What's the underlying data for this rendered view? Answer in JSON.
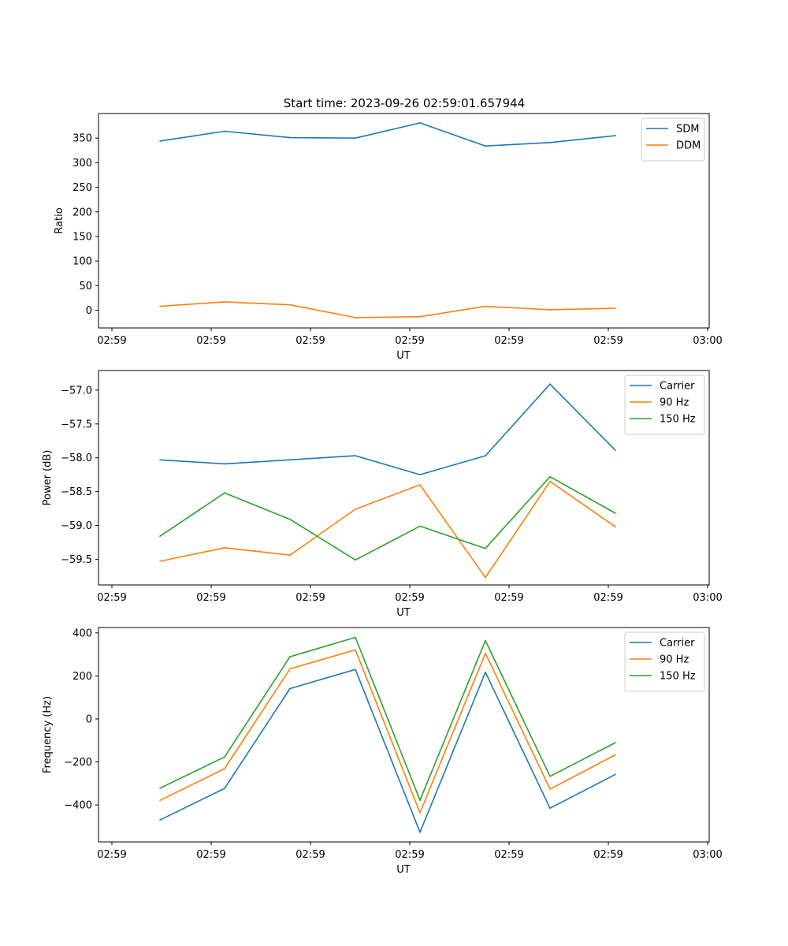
{
  "figure_title": "Start time: 2023-09-26 02:59:01.657944",
  "chart_data": [
    {
      "type": "line",
      "title": "Start time: 2023-09-26 02:59:01.657944",
      "xlabel": "UT",
      "ylabel": "Ratio",
      "x_tick_labels": [
        "02:59",
        "02:59",
        "02:59",
        "02:59",
        "02:59",
        "02:59",
        "02:59"
      ],
      "x_end_tick_label": "03:00",
      "y_ticks": [
        0,
        50,
        100,
        150,
        200,
        250,
        300,
        350
      ],
      "ylim": [
        -36,
        400
      ],
      "legend_position": "top-right",
      "series": [
        {
          "name": "SDM",
          "color": "#1f77b4",
          "values": [
            344,
            364,
            351,
            350,
            381,
            334,
            341,
            355
          ]
        },
        {
          "name": "DDM",
          "color": "#ff7f0e",
          "values": [
            8,
            17,
            11,
            -15,
            -13,
            8,
            1,
            4
          ]
        }
      ]
    },
    {
      "type": "line",
      "title": "",
      "xlabel": "UT",
      "ylabel": "Power (dB)",
      "x_tick_labels": [
        "02:59",
        "02:59",
        "02:59",
        "02:59",
        "02:59",
        "02:59",
        "02:59"
      ],
      "x_end_tick_label": "03:00",
      "y_ticks": [
        -57.0,
        -57.5,
        -58.0,
        -58.5,
        -59.0,
        -59.5
      ],
      "y_tick_labels": [
        "−57.0",
        "−57.5",
        "−58.0",
        "−58.5",
        "−59.0",
        "−59.5"
      ],
      "ylim": [
        -59.88,
        -56.71
      ],
      "legend_position": "top-right",
      "series": [
        {
          "name": "Carrier",
          "color": "#1f77b4",
          "values": [
            -58.03,
            -58.09,
            -58.03,
            -57.97,
            -58.25,
            -57.97,
            -56.91,
            -57.89
          ]
        },
        {
          "name": "90 Hz",
          "color": "#ff7f0e",
          "values": [
            -59.53,
            -59.33,
            -59.44,
            -58.76,
            -58.4,
            -59.77,
            -58.35,
            -59.02
          ]
        },
        {
          "name": "150 Hz",
          "color": "#2ca02c",
          "values": [
            -59.16,
            -58.52,
            -58.91,
            -59.51,
            -59.01,
            -59.34,
            -58.28,
            -58.82
          ]
        }
      ]
    },
    {
      "type": "line",
      "title": "",
      "xlabel": "UT",
      "ylabel": "Frequency (Hz)",
      "x_tick_labels": [
        "02:59",
        "02:59",
        "02:59",
        "02:59",
        "02:59",
        "02:59",
        "02:59"
      ],
      "x_end_tick_label": "03:00",
      "y_ticks": [
        400,
        200,
        0,
        -200,
        -400
      ],
      "y_tick_labels": [
        "400",
        "200",
        "0",
        "−200",
        "−400"
      ],
      "ylim": [
        -572,
        425
      ],
      "legend_position": "top-right",
      "series": [
        {
          "name": "Carrier",
          "color": "#1f77b4",
          "values": [
            -470,
            -323,
            141,
            230,
            -527,
            217,
            -415,
            -258
          ]
        },
        {
          "name": "90 Hz",
          "color": "#ff7f0e",
          "values": [
            -379,
            -231,
            233,
            321,
            -436,
            305,
            -326,
            -167
          ]
        },
        {
          "name": "150 Hz",
          "color": "#2ca02c",
          "values": [
            -322,
            -177,
            289,
            379,
            -378,
            364,
            -267,
            -110
          ]
        }
      ]
    }
  ]
}
